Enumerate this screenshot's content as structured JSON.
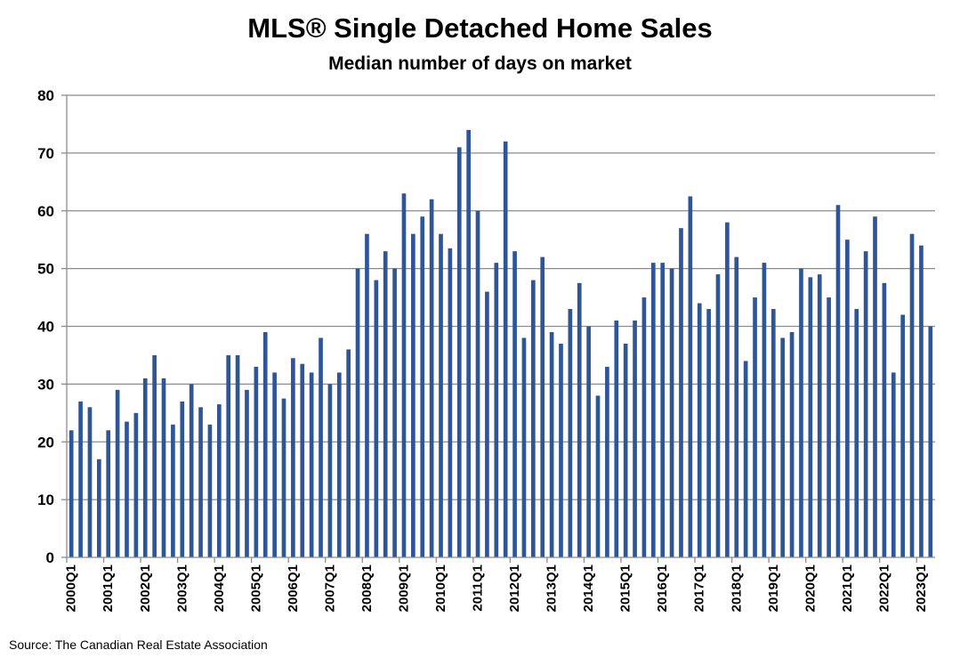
{
  "chart_data": {
    "type": "bar",
    "title": "MLS® Single Detached Home Sales",
    "subtitle": "Median number of days on market",
    "xlabel": "",
    "ylabel": "",
    "ylim": [
      0,
      80
    ],
    "yticks": [
      0,
      10,
      20,
      30,
      40,
      50,
      60,
      70,
      80
    ],
    "grid": true,
    "bar_color": "#2e5597",
    "grid_color": "#8c8c8c",
    "x_tick_labels": [
      "2000Q1",
      "2001Q1",
      "2002Q1",
      "2003Q1",
      "2004Q1",
      "2005Q1",
      "2006Q1",
      "2007Q1",
      "2008Q1",
      "2009Q1",
      "2010Q1",
      "2011Q1",
      "2012Q1",
      "2013Q1",
      "2014Q1",
      "2015Q1",
      "2016Q1",
      "2017Q1",
      "2018Q1",
      "2019Q1",
      "2020Q1",
      "2021Q1",
      "2022Q1",
      "2023Q1"
    ],
    "series": [
      {
        "name": "Median number of days on market",
        "values": [
          22,
          27,
          26,
          17,
          22,
          29,
          23.5,
          25,
          31,
          35,
          31,
          23,
          27,
          30,
          26,
          23,
          26.5,
          35,
          35,
          29,
          33,
          39,
          32,
          27.5,
          34.5,
          33.5,
          32,
          38,
          30,
          32,
          36,
          50,
          56,
          48,
          53,
          50,
          63,
          56,
          59,
          62,
          56,
          53.5,
          71,
          74,
          60,
          46,
          51,
          72,
          53,
          38,
          48,
          52,
          39,
          37,
          43,
          47.5,
          40,
          28,
          33,
          41,
          37,
          41,
          45,
          51,
          51,
          50,
          57,
          62.5,
          44,
          43,
          49,
          58,
          52,
          34,
          45,
          51,
          43,
          38,
          39,
          50,
          48.5,
          49,
          45,
          61,
          55,
          43,
          53,
          59,
          47.5,
          32,
          42,
          56,
          54,
          40
        ]
      }
    ],
    "source": "Source: The Canadian Real Estate Association"
  }
}
